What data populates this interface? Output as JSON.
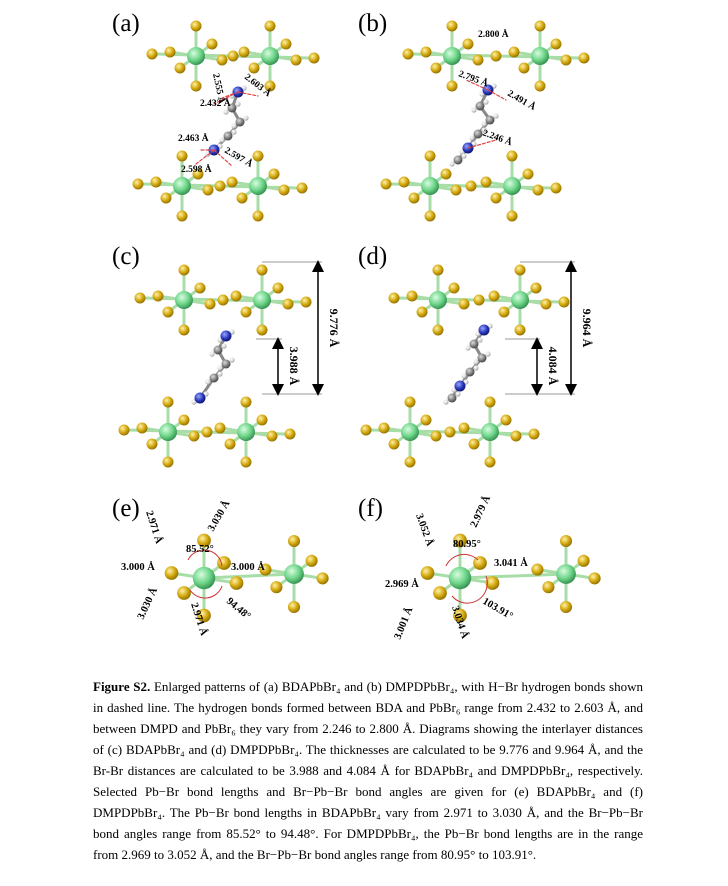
{
  "panels": {
    "a": {
      "label": "(a)",
      "bonds": [
        "2.555 Å",
        "2.603 Å",
        "2.432 Å",
        "2.463 Å",
        "2.597 Å",
        "2.598 Å"
      ]
    },
    "b": {
      "label": "(b)",
      "bonds": [
        "2.800 Å",
        "2.795 Å",
        "2.491 Å",
        "2.246 Å"
      ]
    },
    "c": {
      "label": "(c)",
      "dims": [
        "9.776 Å",
        "3.988 Å"
      ]
    },
    "d": {
      "label": "(d)",
      "dims": [
        "9.964 Å",
        "4.084 Å"
      ]
    },
    "e": {
      "label": "(e)",
      "bonds": [
        "2.971 Å",
        "3.030 Å",
        "85.52°",
        "3.000 Å",
        "3.000 Å",
        "3.030 Å",
        "2.971 Å",
        "94.48°"
      ]
    },
    "f": {
      "label": "(f)",
      "bonds": [
        "3.052 Å",
        "2.979 Å",
        "80.95°",
        "3.041 Å",
        "2.969 Å",
        "3.001 Å",
        "3.034 Å",
        "103.91°"
      ]
    }
  },
  "caption": {
    "label": "Figure S2.",
    "text": " Enlarged patterns of (a) BDAPbBr₄ and (b) DMPDPbBr₄, with H−Br hydrogen bonds shown in dashed line. The hydrogen bonds formed between BDA and PbBr₆ range from 2.432 to 2.603 Å, and between DMPD and PbBr₆ they vary from 2.246 to 2.800 Å. Diagrams showing the interlayer distances of (c) BDAPbBr₄ and (d) DMPDPbBr₄. The thicknesses are calculated to be 9.776 and 9.964 Å, and the Br-Br distances are calculated to be 3.988 and 4.084 Å for BDAPbBr₄ and DMPDPbBr₄, respectively. Selected Pb−Br bond lengths and Br−Pb−Br bond angles are given for (e) BDAPbBr₄ and (f) DMPDPbBr₄. The Pb−Br bond lengths in BDAPbBr₄ vary from 2.971 to 3.030 Å, and the Br−Pb−Br bond angles range from 85.52° to 94.48°. For DMPDPbBr₄, the Pb−Br bond lengths are in the range from 2.969 to 3.052 Å, and the Br−Pb−Br bond angles range from 80.95° to 103.91°."
  },
  "colors": {
    "pb": "#6fd68a",
    "br": "#d4a90e",
    "bond": "#a8dda8",
    "c": "#7a7a7a",
    "n": "#2433b8",
    "h": "#d8d8d8",
    "hbond": "#e04545"
  }
}
